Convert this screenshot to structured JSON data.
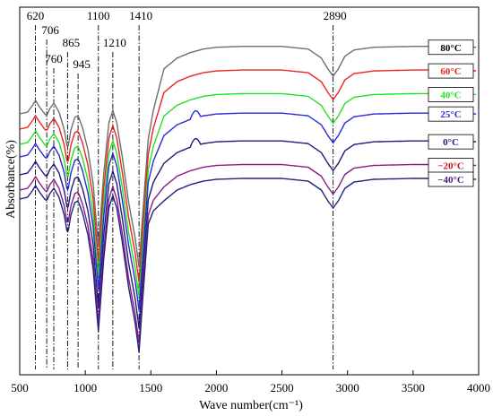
{
  "chart_data": {
    "type": "line",
    "xlabel": "Wave number(cm⁻¹)",
    "ylabel": "Absorbance(%)",
    "xlim": [
      500,
      4000
    ],
    "xticks": [
      "500",
      "1000",
      "1500",
      "2000",
      "2500",
      "3000",
      "3500",
      "4000"
    ],
    "grid": false,
    "legend_position": "right",
    "peak_markers": [
      {
        "x": 620,
        "label": "620"
      },
      {
        "x": 706,
        "label": "706"
      },
      {
        "x": 760,
        "label": "760"
      },
      {
        "x": 865,
        "label": "865"
      },
      {
        "x": 945,
        "label": "945"
      },
      {
        "x": 1100,
        "label": "1100"
      },
      {
        "x": 1210,
        "label": "1210"
      },
      {
        "x": 1410,
        "label": "1410"
      },
      {
        "x": 2890,
        "label": "2890"
      }
    ],
    "series": [
      {
        "name": "80°C",
        "color": "#6e6e6e",
        "offset": 95,
        "depth": 1.0
      },
      {
        "name": "60°C",
        "color": "#e8251f",
        "offset": 78,
        "depth": 1.0
      },
      {
        "name": "40°C",
        "color": "#22e022",
        "offset": 61,
        "depth": 1.0
      },
      {
        "name": "25°C",
        "color": "#2a2ad6",
        "offset": 47,
        "depth": 1.0
      },
      {
        "name": "0°C",
        "color": "#1c1c7a",
        "offset": 27,
        "depth": 1.0
      },
      {
        "name": "−20°C",
        "color": "#8b1a8b",
        "offset": 10,
        "depth": 1.0
      },
      {
        "name": "−40°C",
        "color": "#22227e",
        "offset": 0,
        "depth": 1.0
      }
    ],
    "series_label_colors": [
      "#000000",
      "#e8251f",
      "#22e022",
      "#2a2ad6",
      "#1c1c7a",
      "#c0141e",
      "#4a1a7a"
    ]
  }
}
